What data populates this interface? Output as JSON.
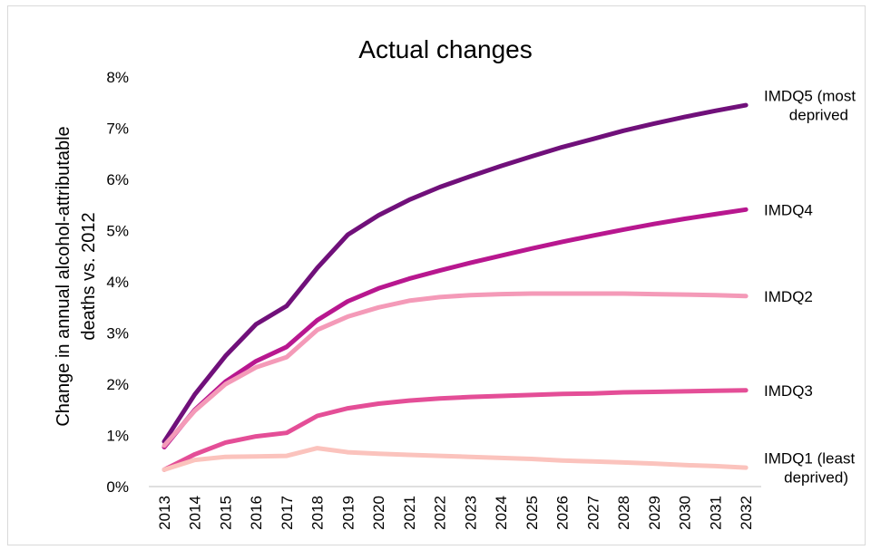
{
  "chart_data": {
    "type": "line",
    "title": "Actual changes",
    "ylabel_lines": [
      "Change in annual alcohol-attributable",
      "deaths vs. 2012"
    ],
    "ylim": [
      0,
      8
    ],
    "y_ticks": [
      "0%",
      "1%",
      "2%",
      "3%",
      "4%",
      "5%",
      "6%",
      "7%",
      "8%"
    ],
    "grid": false,
    "x": [
      "2013",
      "2014",
      "2015",
      "2016",
      "2017",
      "2018",
      "2019",
      "2020",
      "2021",
      "2022",
      "2023",
      "2024",
      "2025",
      "2026",
      "2027",
      "2028",
      "2029",
      "2030",
      "2031",
      "2032"
    ],
    "series": [
      {
        "name": "IMDQ5 (most deprived",
        "label_lines": [
          "IMDQ5 (most",
          "deprived"
        ],
        "color": "#70107a",
        "values": [
          0.88,
          1.8,
          2.55,
          3.17,
          3.53,
          4.27,
          4.92,
          5.3,
          5.6,
          5.85,
          6.06,
          6.26,
          6.45,
          6.63,
          6.79,
          6.95,
          7.09,
          7.22,
          7.34,
          7.45
        ]
      },
      {
        "name": "IMDQ4",
        "label_lines": [
          "IMDQ4"
        ],
        "color": "#b8178f",
        "values": [
          0.77,
          1.5,
          2.05,
          2.45,
          2.73,
          3.25,
          3.62,
          3.87,
          4.06,
          4.22,
          4.37,
          4.51,
          4.65,
          4.78,
          4.9,
          5.02,
          5.13,
          5.23,
          5.32,
          5.41
        ]
      },
      {
        "name": "IMDQ2",
        "label_lines": [
          "IMDQ2"
        ],
        "color": "#f49ab8",
        "values": [
          0.8,
          1.48,
          2.0,
          2.33,
          2.53,
          3.06,
          3.32,
          3.5,
          3.63,
          3.7,
          3.74,
          3.76,
          3.77,
          3.77,
          3.77,
          3.77,
          3.76,
          3.75,
          3.74,
          3.72
        ]
      },
      {
        "name": "IMDQ3",
        "label_lines": [
          "IMDQ3"
        ],
        "color": "#e44e97",
        "values": [
          0.33,
          0.63,
          0.86,
          0.98,
          1.05,
          1.38,
          1.53,
          1.62,
          1.68,
          1.72,
          1.75,
          1.77,
          1.79,
          1.81,
          1.82,
          1.84,
          1.85,
          1.86,
          1.87,
          1.88
        ]
      },
      {
        "name": "IMDQ1 (least deprived)",
        "label_lines": [
          "IMDQ1 (least",
          "deprived)"
        ],
        "color": "#fbc3bd",
        "values": [
          0.33,
          0.52,
          0.58,
          0.59,
          0.6,
          0.75,
          0.67,
          0.64,
          0.62,
          0.6,
          0.58,
          0.56,
          0.54,
          0.51,
          0.49,
          0.47,
          0.45,
          0.42,
          0.4,
          0.37
        ]
      }
    ]
  }
}
